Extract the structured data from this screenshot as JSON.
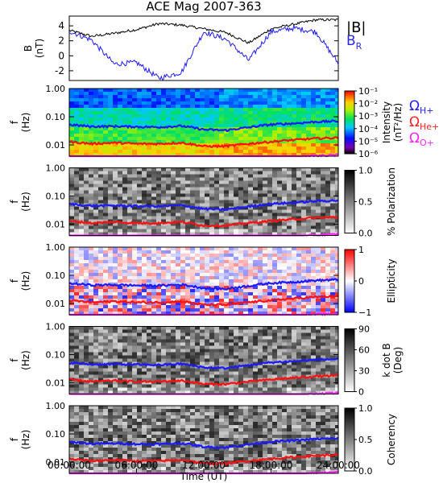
{
  "title": "ACE Mag 2007-363",
  "colors": {
    "bmag": "#000000",
    "br": "#1c1cf0",
    "h_line": "#1a1aff",
    "he_line": "#ff1010",
    "o_line": "#ff20ff",
    "legend_br": "#2a2ae0",
    "legend_h": "#2020ff",
    "legend_he": "#ff2020",
    "legend_o": "#ff20ff"
  },
  "top_panel": {
    "ylabel": "B",
    "yunit": "(nT)",
    "legend_bmag": "|B|",
    "legend_br": "B",
    "legend_br_sub": "R"
  },
  "spec_legend": {
    "h": {
      "sym": "Ω",
      "sub": "H+"
    },
    "he": {
      "sym": "Ω",
      "sub": "He+"
    },
    "o": {
      "sym": "Ω",
      "sub": "O+"
    }
  },
  "panels": [
    {
      "cmap": "rainbow",
      "cbar_label": "Intensity",
      "cbar_label2": "(nT²/Hz)",
      "cbar_ticks": [
        "10⁻¹",
        "10⁻²",
        "10⁻³",
        "10⁻⁴",
        "10⁻⁵",
        "10⁻⁶"
      ]
    },
    {
      "cmap": "gray",
      "cbar_label": "% Polarization",
      "cbar_label2": "",
      "cbar_ticks": [
        "1.0",
        "0.5",
        "0.0"
      ]
    },
    {
      "cmap": "bwr",
      "cbar_label": "Ellipticity",
      "cbar_label2": "",
      "cbar_ticks": [
        "1",
        "0",
        "−1"
      ]
    },
    {
      "cmap": "gray",
      "cbar_label": "k dot B",
      "cbar_label2": "(Deg)",
      "cbar_ticks": [
        "90",
        "60",
        "30",
        "0"
      ]
    },
    {
      "cmap": "gray",
      "cbar_label": "Coherency",
      "cbar_label2": "",
      "cbar_ticks": [
        "1.0",
        "0.5",
        "0.0"
      ]
    }
  ],
  "freq_axis": {
    "label": "f",
    "unit": "(Hz)",
    "ticks": [
      "1.00",
      "0.10",
      "0.01"
    ]
  },
  "time_axis": {
    "label": "Time (UT)",
    "ticks": [
      "00:00:00",
      "06:00:00",
      "12:00:00",
      "18:00:00",
      "24:00:00"
    ]
  },
  "chart_data": {
    "type": "line",
    "title": "ACE Mag 2007-363",
    "xlabel": "Time (UT)",
    "x_hours": [
      0,
      2,
      4,
      6,
      8,
      10,
      12,
      14,
      16,
      18,
      20,
      22,
      24
    ],
    "top_panel": {
      "ylabel": "B (nT)",
      "ylim": [
        -3.3,
        5.3
      ],
      "yticks": [
        -2,
        0,
        2,
        4
      ],
      "series": [
        {
          "name": "|B|",
          "values": [
            3.4,
            2.6,
            3.0,
            3.5,
            4.3,
            4.1,
            3.6,
            3.1,
            1.7,
            3.6,
            4.2,
            4.8,
            4.8
          ]
        },
        {
          "name": "B_R",
          "values": [
            3.3,
            2.1,
            -1.1,
            -0.9,
            -3.0,
            -2.2,
            3.2,
            2.2,
            -0.6,
            3.2,
            3.7,
            3.2,
            -1.0
          ]
        }
      ]
    },
    "spectral_panels": {
      "ylabel": "f (Hz)",
      "yscale": "log",
      "ylim": [
        0.004,
        1.0
      ],
      "gyrofrequencies": [
        {
          "name": "H+",
          "values": [
            0.052,
            0.045,
            0.046,
            0.044,
            0.043,
            0.047,
            0.035,
            0.033,
            0.042,
            0.053,
            0.058,
            0.066,
            0.07
          ]
        },
        {
          "name": "He+",
          "values": [
            0.013,
            0.011,
            0.012,
            0.011,
            0.011,
            0.012,
            0.009,
            0.009,
            0.011,
            0.013,
            0.015,
            0.017,
            0.018
          ]
        },
        {
          "name": "O+",
          "values": [
            0.0033,
            0.0028,
            0.0029,
            0.0027,
            0.0027,
            0.0029,
            0.0022,
            0.0021,
            0.0026,
            0.0033,
            0.0036,
            0.0041,
            0.0044
          ]
        }
      ]
    }
  }
}
